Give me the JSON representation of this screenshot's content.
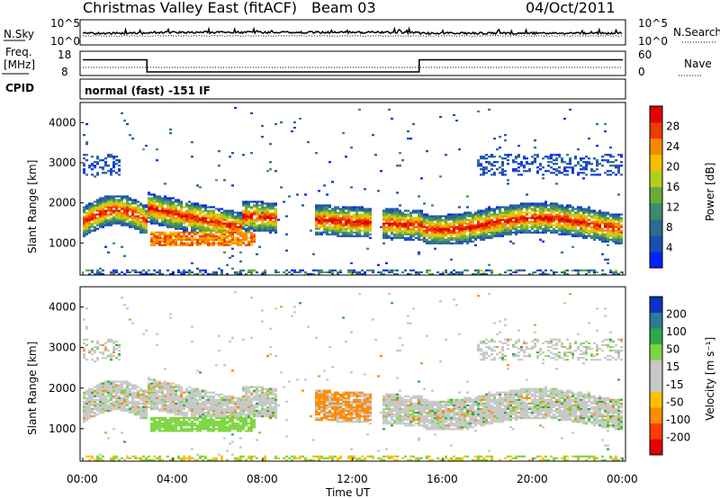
{
  "header": {
    "site": "Christmas Valley East (fitACF)",
    "beam": "Beam 03",
    "date": "04/Oct/2011"
  },
  "left_labels": {
    "nsky": "N.Sky",
    "freq_line1": "Freq.",
    "freq_line2": "[MHz]",
    "cpid": "CPID"
  },
  "right_labels": {
    "nsearch": "N.Search",
    "nave": "Nave"
  },
  "cpid_text": "normal (fast) -151 IF",
  "colors": {
    "power_scale": [
      "#0022ff",
      "#1a4fb0",
      "#2e6b8e",
      "#3c8c6a",
      "#6aaa3a",
      "#b8cc1e",
      "#f2c200",
      "#f58a00",
      "#ee3b00",
      "#e00000"
    ],
    "velocity_scale": [
      "#e00000",
      "#ff3c00",
      "#ff8c00",
      "#ffc200",
      "#c8c8c8",
      "#c8c8c8",
      "#7cd640",
      "#2fa84a",
      "#2c7a9a",
      "#1030c0"
    ]
  },
  "chart_data": [
    {
      "type": "line",
      "name": "noise",
      "title": "",
      "y_ticks_left": [
        "10^5",
        "10^0"
      ],
      "y_ticks_right": [
        "10^5",
        "10^0"
      ],
      "xlim": [
        0,
        24
      ]
    },
    {
      "type": "line",
      "name": "frequency-nave",
      "x_hours": [
        0,
        2.85,
        2.85,
        14.95,
        14.95,
        24
      ],
      "freq_mhz": [
        14.5,
        14.5,
        9.5,
        9.5,
        14.5,
        14.5
      ],
      "ylim_left": [
        8,
        18
      ],
      "y_ticks_left": [
        "18",
        "8"
      ],
      "ylim_right": [
        0,
        60
      ],
      "y_ticks_right": [
        "60",
        "0"
      ],
      "xlim": [
        0,
        24
      ]
    },
    {
      "type": "heatmap",
      "name": "power",
      "ylabel": "Slant Range [km]",
      "y_ticks": [
        "1000",
        "2000",
        "3000",
        "4000"
      ],
      "ylim": [
        200,
        4500
      ],
      "xlim": [
        0,
        24
      ],
      "colorbar_label": "Power [dB]",
      "colorbar_ticks": [
        "28",
        "24",
        "20",
        "16",
        "12",
        "8",
        "4"
      ],
      "colorbar_range": [
        0,
        32
      ]
    },
    {
      "type": "heatmap",
      "name": "velocity",
      "ylabel": "Slant Range [km]",
      "y_ticks": [
        "1000",
        "2000",
        "3000",
        "4000"
      ],
      "ylim": [
        200,
        4500
      ],
      "xlim": [
        0,
        24
      ],
      "colorbar_label": "Velocity [m s⁻¹]",
      "colorbar_ticks": [
        "200",
        "100",
        "50",
        "15",
        "-15",
        "-50",
        "-100",
        "-200"
      ],
      "x_ticks": [
        "00:00",
        "04:00",
        "08:00",
        "12:00",
        "16:00",
        "20:00",
        "00:00"
      ],
      "xlabel": "Time UT"
    }
  ]
}
